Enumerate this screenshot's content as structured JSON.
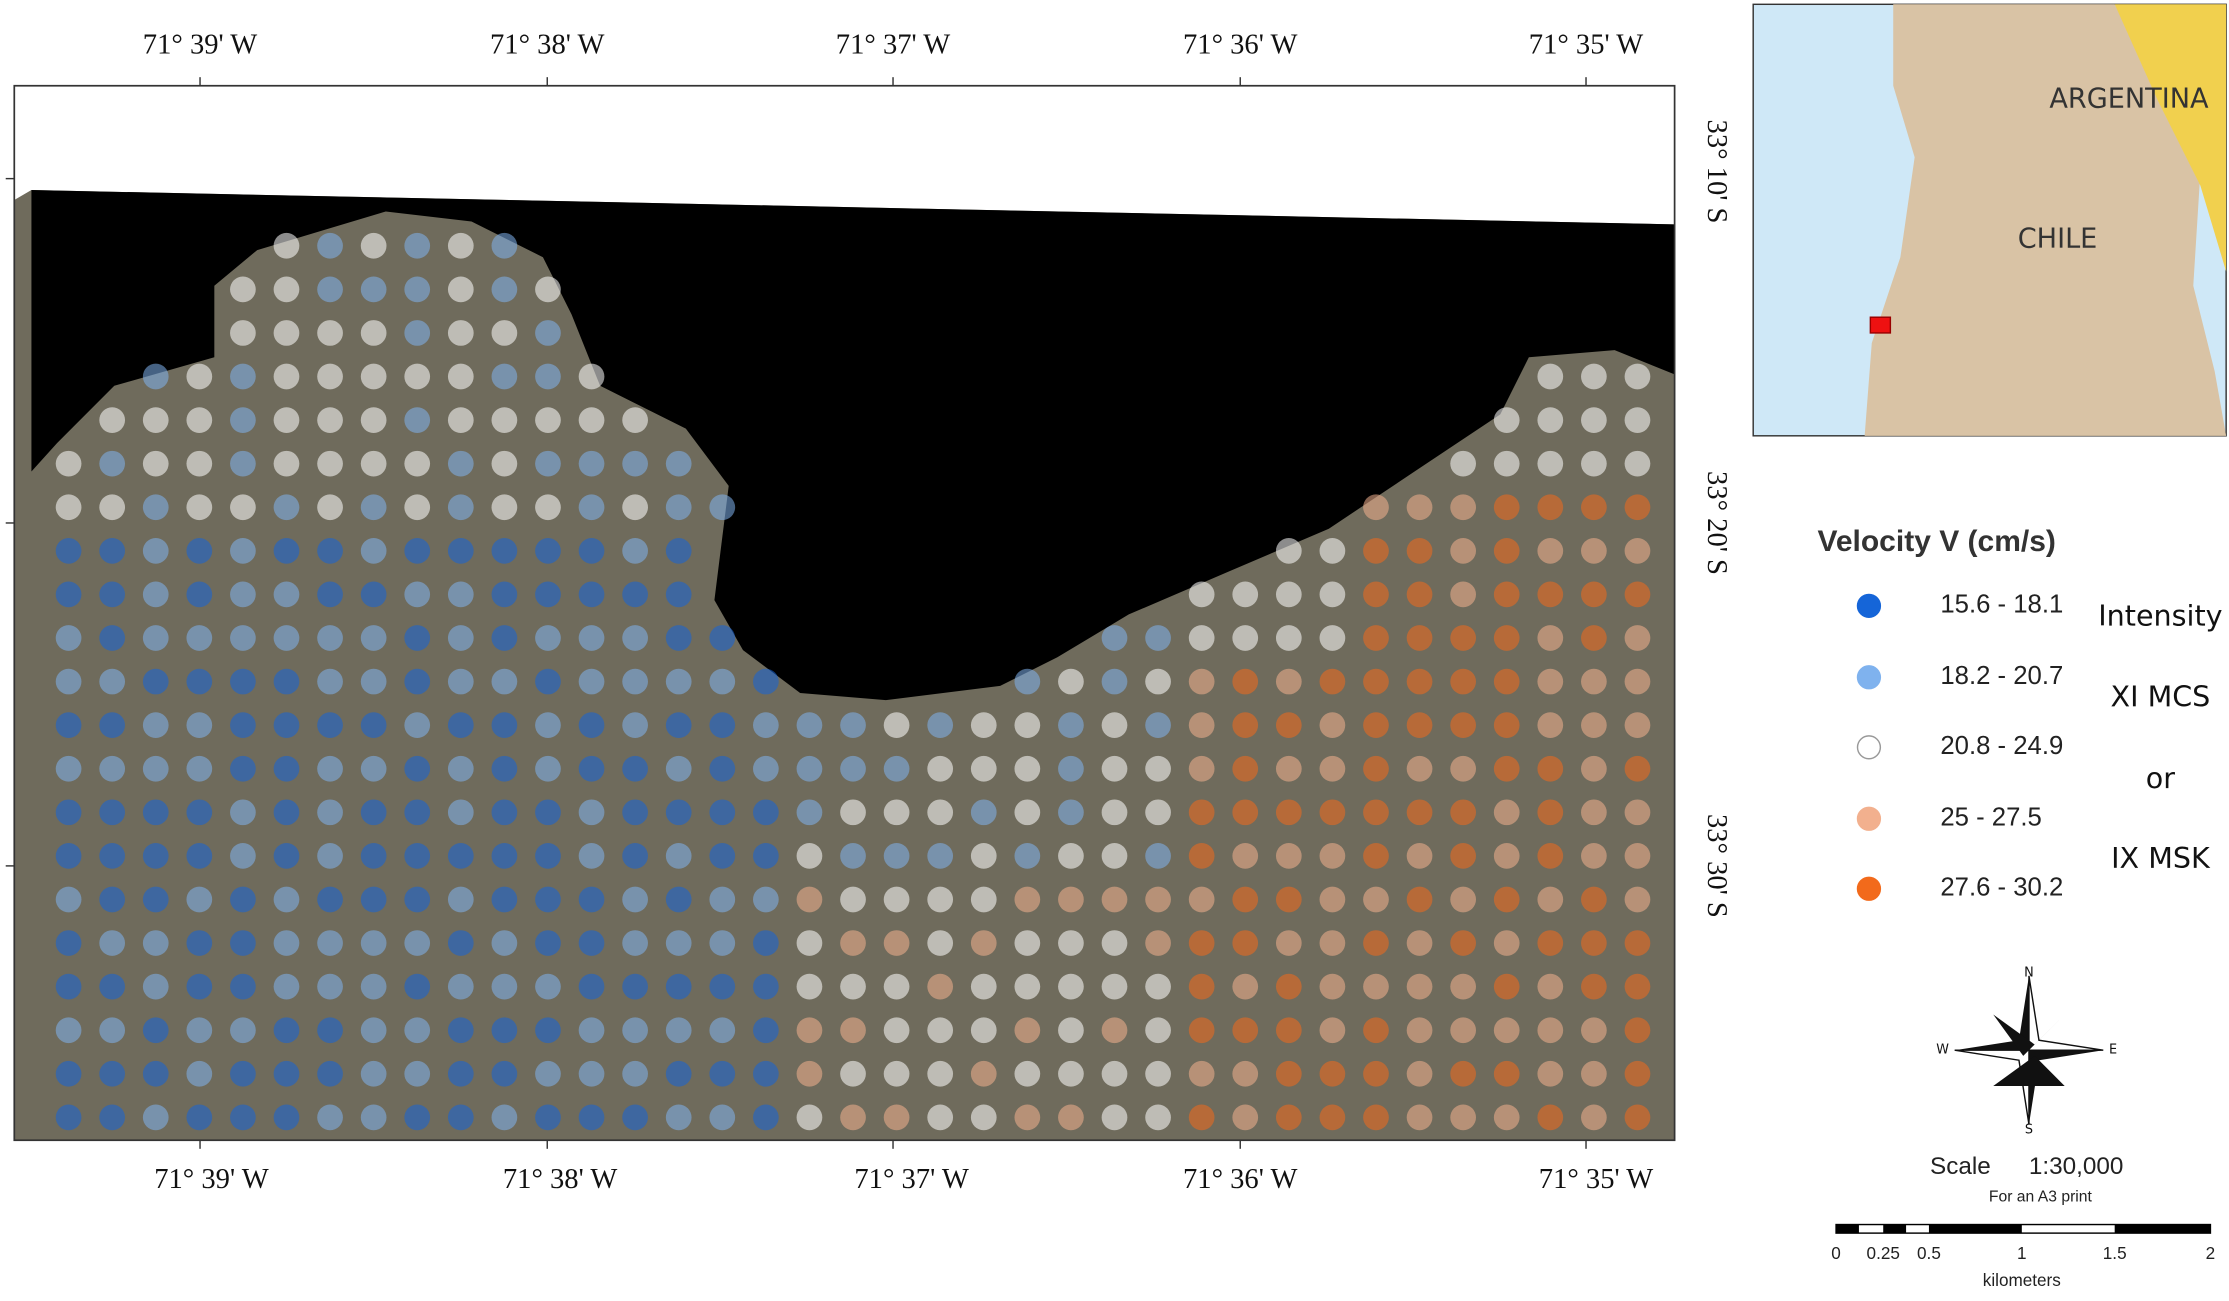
{
  "map": {
    "lon_labels_top": [
      "71° 39' W",
      "71° 38' W",
      "71° 37' W",
      "71° 36' W",
      "71° 35' W"
    ],
    "lon_labels_bottom": [
      "71° 39' W",
      "71° 38' W",
      "71° 37' W",
      "71° 36' W",
      "71° 35' W"
    ],
    "lat_labels": [
      "33° 10' S",
      "33° 20' S",
      "33° 30' S"
    ],
    "inset": {
      "labels": [
        "ARGENTINA",
        "CHILE"
      ]
    },
    "legend": {
      "title": "Velocity V (cm/s)",
      "classes": [
        {
          "label": "15.6 - 18.1",
          "color": "#1565d8"
        },
        {
          "label": "18.2 - 20.7",
          "color": "#7fb2ee"
        },
        {
          "label": "20.8 - 24.9",
          "color": "#ffffff"
        },
        {
          "label": "25 - 27.5",
          "color": "#f2b08e"
        },
        {
          "label": "27.6 - 30.2",
          "color": "#f26a1b"
        }
      ],
      "intensity": [
        "Intensity",
        "XI MCS",
        "or",
        "IX MSK"
      ]
    },
    "compass": [
      "N",
      "W",
      "E",
      "S"
    ],
    "scale": {
      "label": "Scale",
      "ratio": "1:30,000",
      "note": "For an A3 print",
      "ticks": [
        "0",
        "0.25",
        "0.5",
        "1",
        "1.5",
        "2"
      ],
      "unit": "kilometers"
    }
  }
}
